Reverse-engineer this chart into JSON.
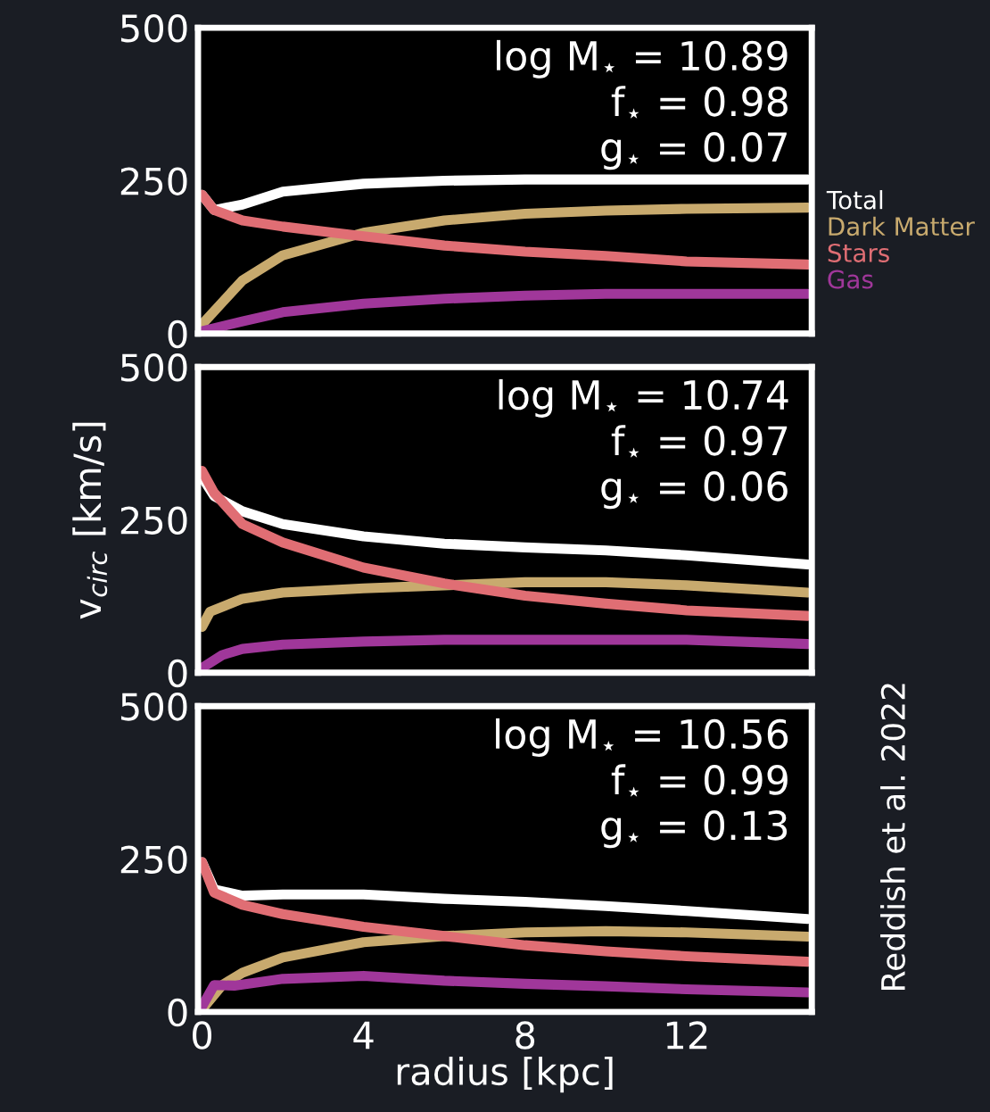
{
  "chart_data": [
    {
      "type": "line",
      "xlim": [
        -0.1,
        15.1
      ],
      "ylim": [
        0,
        500
      ],
      "xticks": [
        0,
        4,
        8,
        12
      ],
      "yticks": [
        0,
        250,
        500
      ],
      "tick_labels": "y",
      "grid": false,
      "legend": "right",
      "marker": "none",
      "line_style": "solid",
      "annotations": [
        "log M$_{⋆}$ = 10.89",
        "f$_{⋆}$ = 0.98",
        "g$_{⋆}$ = 0.07"
      ],
      "series": [
        {
          "name": "Total",
          "color": "#ffffff",
          "x": [
            0,
            0.3,
            1,
            2,
            4,
            6,
            8,
            10,
            12,
            15
          ],
          "values": [
            227,
            202,
            211,
            232,
            245,
            250,
            252,
            252,
            252,
            252
          ]
        },
        {
          "name": "Dark Matter",
          "color": "#c8aa6e",
          "x": [
            0,
            1,
            2,
            4,
            6,
            8,
            10,
            12,
            15
          ],
          "values": [
            15,
            87,
            128,
            165,
            185,
            196,
            201,
            204,
            206
          ]
        },
        {
          "name": "Stars",
          "color": "#e06e74",
          "x": [
            0,
            0.3,
            1,
            2,
            4,
            6,
            8,
            10,
            12,
            15
          ],
          "values": [
            227,
            202,
            185,
            175,
            159,
            144,
            134,
            127,
            118,
            113
          ]
        },
        {
          "name": "Gas",
          "color": "#a0379a",
          "x": [
            0,
            1,
            2,
            4,
            6,
            8,
            10,
            15
          ],
          "values": [
            4,
            20,
            35,
            49,
            57,
            62,
            65,
            65
          ]
        }
      ]
    },
    {
      "type": "line",
      "xlim": [
        -0.1,
        15.1
      ],
      "ylim": [
        0,
        500
      ],
      "xticks": [
        0,
        4,
        8,
        12
      ],
      "yticks": [
        0,
        250,
        500
      ],
      "tick_labels": "y",
      "grid": false,
      "ylabel": "v$_{circ}$ [km/s]",
      "marker": "none",
      "line_style": "solid",
      "annotations": [
        "log M$_{⋆}$ = 10.74",
        "f$_{⋆}$ = 0.97",
        "g$_{⋆}$ = 0.06"
      ],
      "series": [
        {
          "color": "#ffffff",
          "x": [
            0,
            0.3,
            1,
            2,
            4,
            6,
            8,
            10,
            12,
            15
          ],
          "values": [
            320,
            289,
            264,
            243,
            223,
            211,
            205,
            200,
            192,
            177
          ]
        },
        {
          "color": "#c8aa6e",
          "x": [
            0,
            0.2,
            1,
            2,
            4,
            6,
            8,
            10,
            12,
            15
          ],
          "values": [
            75,
            100,
            121,
            131,
            138,
            143,
            148,
            148,
            143,
            131
          ]
        },
        {
          "color": "#e06e74",
          "x": [
            0,
            0.3,
            1,
            2,
            4,
            6,
            8,
            10,
            12,
            15
          ],
          "values": [
            330,
            294,
            243,
            213,
            172,
            146,
            126,
            113,
            102,
            93
          ]
        },
        {
          "color": "#a0379a",
          "x": [
            0,
            0.5,
            1,
            2,
            4,
            6,
            8,
            10,
            12,
            15
          ],
          "values": [
            8,
            29,
            39,
            46,
            51,
            54,
            54,
            54,
            54,
            47
          ]
        }
      ]
    },
    {
      "type": "line",
      "xlim": [
        -0.1,
        15.1
      ],
      "ylim": [
        0,
        500
      ],
      "xticks": [
        0,
        4,
        8,
        12
      ],
      "yticks": [
        0,
        250,
        500
      ],
      "grid": false,
      "xlabel": "radius [kpc]",
      "marker": "none",
      "line_style": "solid",
      "annotations": [
        "log M$_{⋆}$ = 10.56",
        "f$_{⋆}$ = 0.99",
        "g$_{⋆}$ = 0.13",
        "Reddish et al. 2022"
      ],
      "series": [
        {
          "color": "#ffffff",
          "x": [
            0,
            0.3,
            1,
            2,
            4,
            6,
            8,
            10,
            12,
            15
          ],
          "values": [
            245,
            200,
            190,
            192,
            192,
            185,
            180,
            173,
            165,
            152
          ]
        },
        {
          "color": "#c8aa6e",
          "x": [
            0,
            0.5,
            1,
            2,
            4,
            6,
            8,
            10,
            12,
            15
          ],
          "values": [
            4,
            44,
            64,
            89,
            114,
            124,
            130,
            132,
            130,
            123
          ]
        },
        {
          "color": "#e06e74",
          "x": [
            0,
            0.3,
            1,
            2,
            4,
            6,
            8,
            10,
            12,
            15
          ],
          "values": [
            245,
            195,
            175,
            160,
            139,
            124,
            109,
            99,
            91,
            82
          ]
        },
        {
          "color": "#a0379a",
          "x": [
            0,
            0.3,
            0.8,
            2,
            4,
            6,
            8,
            10,
            12,
            15
          ],
          "values": [
            9,
            44,
            43,
            54,
            59,
            51,
            46,
            42,
            37,
            32
          ]
        }
      ]
    }
  ]
}
